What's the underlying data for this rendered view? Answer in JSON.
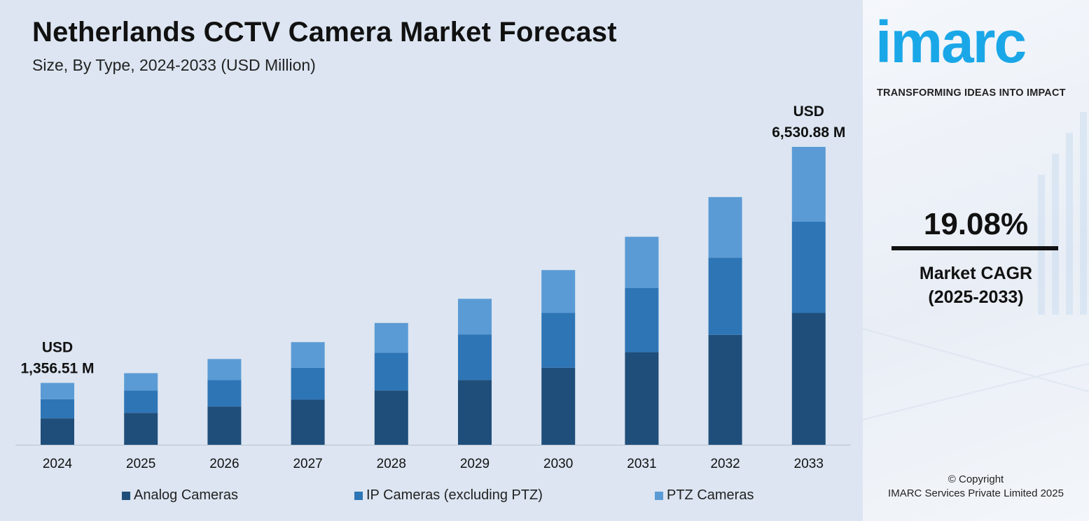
{
  "header": {
    "title": "Netherlands CCTV Camera Market Forecast",
    "subtitle": "Size, By Type, 2024-2033 (USD Million)"
  },
  "chart_data": {
    "type": "bar",
    "stacked": true,
    "categories": [
      "2024",
      "2025",
      "2026",
      "2027",
      "2028",
      "2029",
      "2030",
      "2031",
      "2032",
      "2033"
    ],
    "series": [
      {
        "name": "Analog Cameras",
        "color": "#1f4e7a",
        "values": [
          580,
          700,
          840,
          990,
          1190,
          1420,
          1690,
          2030,
          2410,
          2890
        ]
      },
      {
        "name": "IP Cameras (excluding PTZ)",
        "color": "#2e75b6",
        "values": [
          420,
          490,
          580,
          700,
          830,
          1000,
          1200,
          1410,
          1690,
          2000
        ]
      },
      {
        "name": "PTZ Cameras",
        "color": "#5b9bd5",
        "values": [
          356.51,
          380,
          460,
          560,
          650,
          780,
          940,
          1120,
          1330,
          1640.88
        ]
      }
    ],
    "totals_annotations": [
      {
        "category": "2024",
        "line1": "USD",
        "line2": "1,356.51 M"
      },
      {
        "category": "2033",
        "line1": "USD",
        "line2": "6,530.88 M"
      }
    ],
    "ylim": [
      0,
      7000
    ],
    "xlabel": "",
    "ylabel": "",
    "grid": false,
    "legend_position": "bottom"
  },
  "sidebar": {
    "logo_text": "imarc",
    "tagline": "TRANSFORMING IDEAS INTO IMPACT",
    "cagr_value": "19.08%",
    "cagr_label_line1": "Market CAGR",
    "cagr_label_line2": "(2025-2033)",
    "copyright_line1": "© Copyright",
    "copyright_line2": "IMARC Services Private Limited 2025",
    "logo_color": "#1aa7e8"
  }
}
